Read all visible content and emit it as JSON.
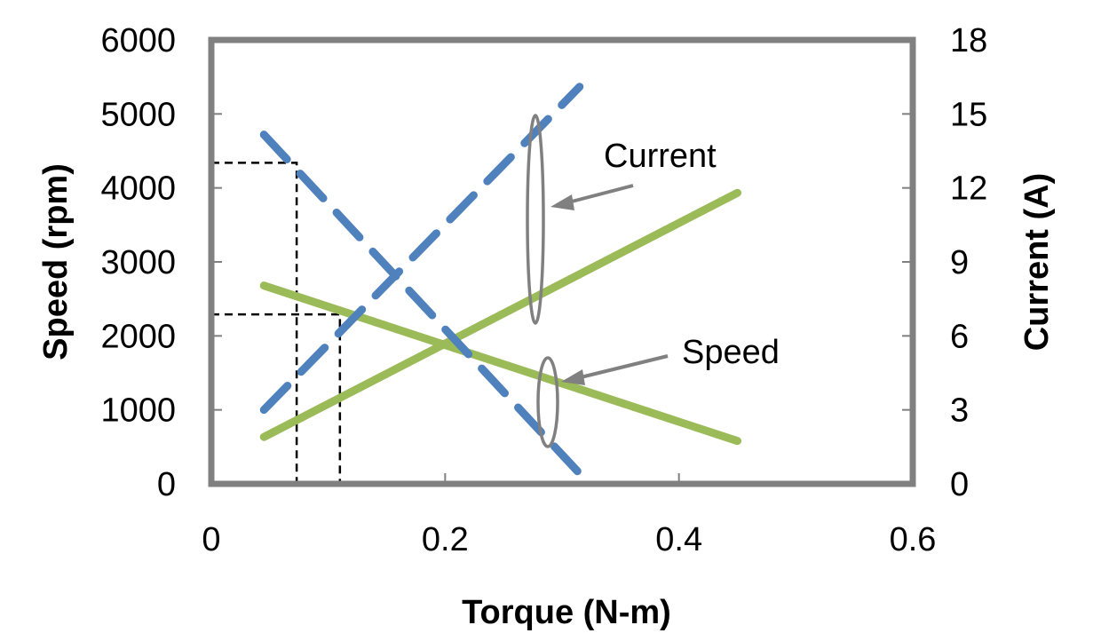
{
  "chart_data": {
    "type": "line",
    "xlabel": "Torque (N-m)",
    "ylabel": "Speed (rpm)",
    "y2label": "Current (A)",
    "xlim": [
      0,
      0.6
    ],
    "ylim": [
      0,
      6000
    ],
    "y2lim": [
      0,
      18
    ],
    "xticks": [
      "0",
      "0.2",
      "0.4",
      "0.6"
    ],
    "yticks": [
      "0",
      "1000",
      "2000",
      "3000",
      "4000",
      "5000",
      "6000"
    ],
    "y2ticks": [
      "0",
      "3",
      "6",
      "9",
      "12",
      "15",
      "18"
    ],
    "grid": false,
    "legend": "none",
    "colors": {
      "measured": "#9bbb59",
      "simulated": "#4f81bd",
      "axis": "#808080",
      "reference": "#000000"
    },
    "series": [
      {
        "axis": "left",
        "style": "dashed",
        "color": "#4f81bd",
        "x": [
          0.045,
          0.315
        ],
        "y": [
          4720,
          140
        ]
      },
      {
        "axis": "right",
        "style": "dashed",
        "color": "#4f81bd",
        "x": [
          0.045,
          0.315
        ],
        "y": [
          3.0,
          16.1
        ]
      },
      {
        "axis": "left",
        "style": "solid",
        "color": "#9bbb59",
        "x": [
          0.045,
          0.45
        ],
        "y": [
          2680,
          580
        ]
      },
      {
        "axis": "right",
        "style": "solid",
        "color": "#9bbb59",
        "x": [
          0.045,
          0.45
        ],
        "y": [
          1.9,
          11.8
        ]
      }
    ],
    "reference_lines": [
      {
        "x": 0.073,
        "y": 4340
      },
      {
        "x": 0.11,
        "y": 2290
      }
    ],
    "annotations": [
      {
        "text": "Current"
      },
      {
        "text": "Speed"
      }
    ]
  }
}
